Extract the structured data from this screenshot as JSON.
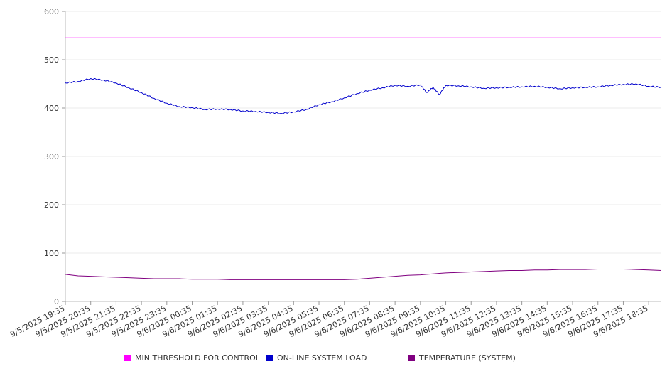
{
  "chart_data": {
    "type": "line",
    "title": "",
    "xlabel": "",
    "ylabel": "",
    "ylim": [
      0,
      600
    ],
    "yticks": [
      0,
      100,
      200,
      300,
      400,
      500,
      600
    ],
    "grid": true,
    "legend_position": "bottom",
    "x_tick_labels": [
      "9/5/2025 19:35",
      "9/5/2025 20:35",
      "9/5/2025 21:35",
      "9/5/2025 22:35",
      "9/5/2025 23:35",
      "9/6/2025 00:35",
      "9/6/2025 01:35",
      "9/6/2025 02:35",
      "9/6/2025 03:35",
      "9/6/2025 04:35",
      "9/6/2025 05:35",
      "9/6/2025 06:35",
      "9/6/2025 07:35",
      "9/6/2025 08:35",
      "9/6/2025 09:35",
      "9/6/2025 10:35",
      "9/6/2025 11:35",
      "9/6/2025 12:35",
      "9/6/2025 13:35",
      "9/6/2025 14:35",
      "9/6/2025 15:35",
      "9/6/2025 16:35",
      "9/6/2025 17:35",
      "9/6/2025 18:35"
    ],
    "x": [
      "9/5/2025 19:35",
      "9/5/2025 20:05",
      "9/5/2025 20:35",
      "9/5/2025 21:05",
      "9/5/2025 21:35",
      "9/5/2025 22:05",
      "9/5/2025 22:35",
      "9/5/2025 23:05",
      "9/5/2025 23:35",
      "9/6/2025 00:05",
      "9/6/2025 00:35",
      "9/6/2025 01:05",
      "9/6/2025 01:35",
      "9/6/2025 02:05",
      "9/6/2025 02:35",
      "9/6/2025 03:05",
      "9/6/2025 03:35",
      "9/6/2025 04:05",
      "9/6/2025 04:35",
      "9/6/2025 05:05",
      "9/6/2025 05:35",
      "9/6/2025 06:05",
      "9/6/2025 06:35",
      "9/6/2025 07:05",
      "9/6/2025 07:35",
      "9/6/2025 08:05",
      "9/6/2025 08:35",
      "9/6/2025 09:05",
      "9/6/2025 09:35",
      "9/6/2025 09:50",
      "9/6/2025 10:05",
      "9/6/2025 10:20",
      "9/6/2025 10:35",
      "9/6/2025 11:05",
      "9/6/2025 11:35",
      "9/6/2025 12:05",
      "9/6/2025 12:35",
      "9/6/2025 13:05",
      "9/6/2025 13:35",
      "9/6/2025 14:05",
      "9/6/2025 14:35",
      "9/6/2025 15:05",
      "9/6/2025 15:35",
      "9/6/2025 16:05",
      "9/6/2025 16:35",
      "9/6/2025 17:05",
      "9/6/2025 17:35",
      "9/6/2025 18:05",
      "9/6/2025 18:35",
      "9/6/2025 19:05"
    ],
    "series": [
      {
        "name": "MIN THRESHOLD FOR CONTROL",
        "color": "#ff00ff",
        "values": [
          545,
          545,
          545,
          545,
          545,
          545,
          545,
          545,
          545,
          545,
          545,
          545,
          545,
          545,
          545,
          545,
          545,
          545,
          545,
          545,
          545,
          545,
          545,
          545,
          545,
          545,
          545,
          545,
          545,
          545,
          545,
          545,
          545,
          545,
          545,
          545,
          545,
          545,
          545,
          545,
          545,
          545,
          545,
          545,
          545,
          545,
          545,
          545,
          545,
          545
        ]
      },
      {
        "name": "ON-LINE SYSTEM LOAD",
        "color": "#0000cc",
        "values": [
          452,
          455,
          461,
          458,
          452,
          442,
          432,
          420,
          410,
          403,
          401,
          397,
          398,
          397,
          394,
          393,
          391,
          389,
          392,
          397,
          407,
          413,
          421,
          430,
          437,
          442,
          447,
          445,
          448,
          432,
          443,
          428,
          447,
          446,
          444,
          441,
          442,
          443,
          444,
          445,
          443,
          440,
          442,
          443,
          444,
          447,
          449,
          450,
          445,
          443
        ]
      },
      {
        "name": "TEMPERATURE (SYSTEM)",
        "color": "#800080",
        "values": [
          56,
          53,
          52,
          51,
          50,
          49,
          48,
          47,
          47,
          47,
          46,
          46,
          46,
          45,
          45,
          45,
          45,
          45,
          45,
          45,
          45,
          45,
          45,
          46,
          48,
          50,
          52,
          54,
          55,
          56,
          57,
          58,
          59,
          60,
          61,
          62,
          63,
          64,
          64,
          65,
          65,
          66,
          66,
          66,
          67,
          67,
          67,
          66,
          65,
          64
        ]
      }
    ]
  }
}
